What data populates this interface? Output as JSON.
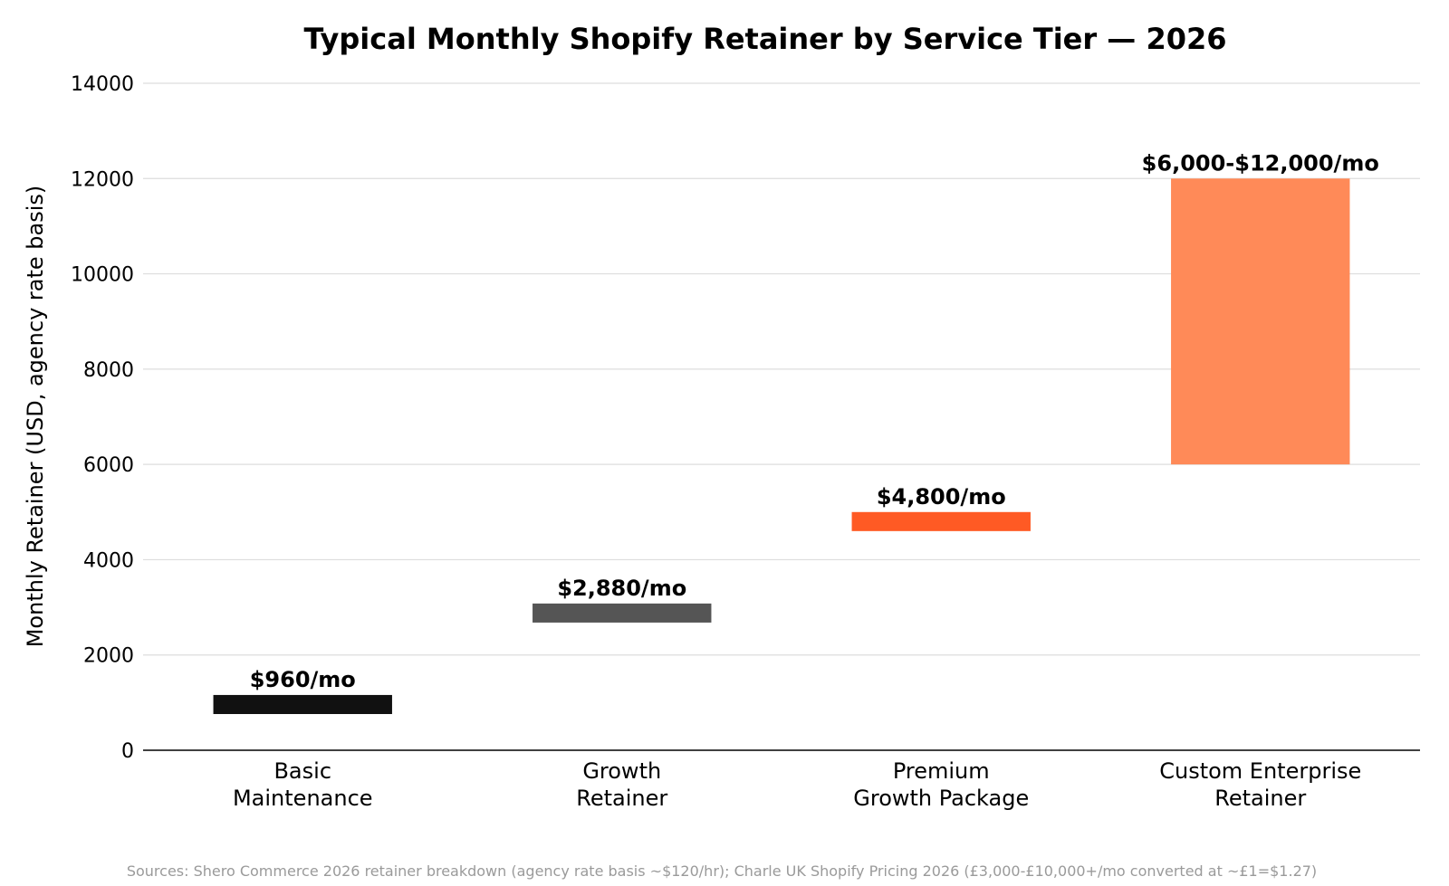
{
  "chart_data": {
    "type": "bar",
    "title": "Typical Monthly Shopify Retainer by Service Tier — 2026",
    "ylabel": "Monthly Retainer (USD, agency rate basis)",
    "xlabel": "",
    "ylim": [
      0,
      14000
    ],
    "yticks": [
      0,
      2000,
      4000,
      6000,
      8000,
      10000,
      12000,
      14000
    ],
    "grid": true,
    "categories": [
      [
        "Basic",
        "Maintenance"
      ],
      [
        "Growth",
        "Retainer"
      ],
      [
        "Premium",
        "Growth Package"
      ],
      [
        "Custom Enterprise",
        "Retainer"
      ]
    ],
    "bars": [
      {
        "low": 760,
        "high": 1160,
        "label": "$960/mo",
        "color": "#111111"
      },
      {
        "low": 2680,
        "high": 3080,
        "label": "$2,880/mo",
        "color": "#555555"
      },
      {
        "low": 4600,
        "high": 5000,
        "label": "$4,800/mo",
        "color": "#ff5a24"
      },
      {
        "low": 6000,
        "high": 12000,
        "label": "$6,000-$12,000/mo",
        "color": "#ff8a58"
      }
    ],
    "source": "Sources: Shero Commerce 2026 retainer breakdown (agency rate basis ~$120/hr); Charle UK Shopify Pricing 2026 (£3,000-£10,000+/mo converted at ~£1=$1.27)"
  }
}
